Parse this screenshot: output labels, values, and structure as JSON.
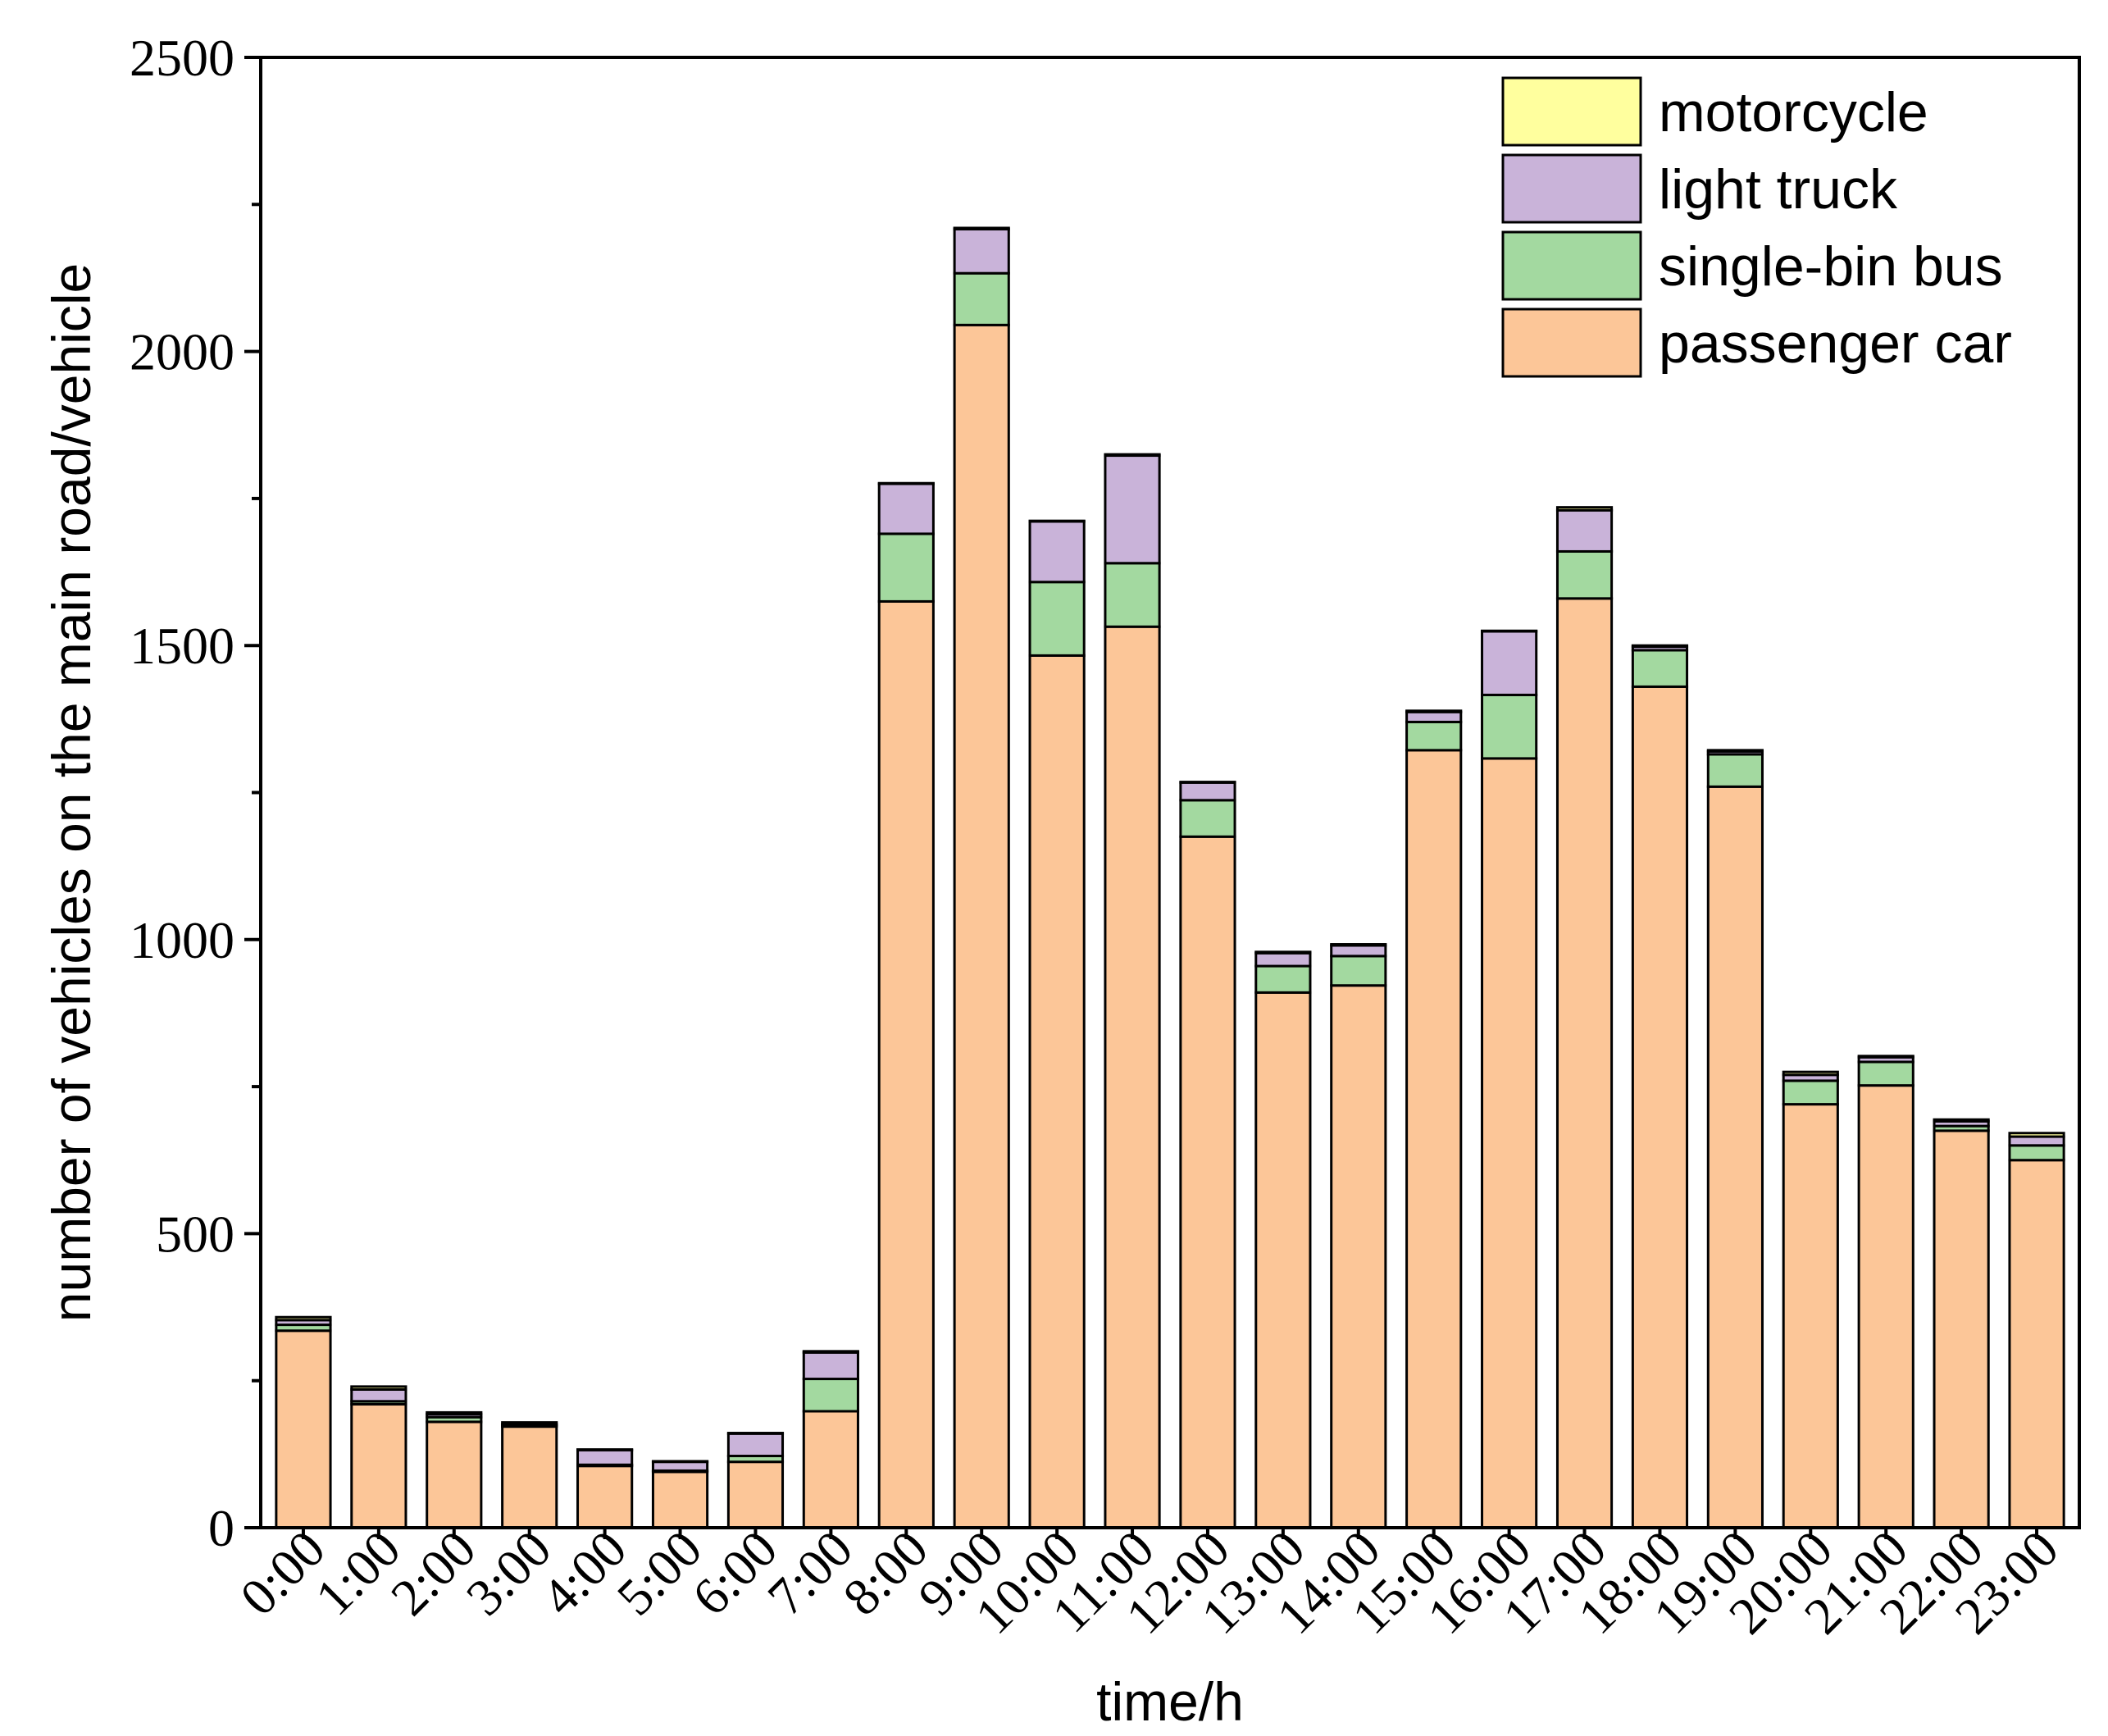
{
  "chart_data": {
    "type": "bar",
    "stacked": true,
    "title": "",
    "xlabel": "time/h",
    "ylabel": "number of vehicles on the main road/vehicle",
    "ylim": [
      0,
      2500
    ],
    "yticks": [
      0,
      500,
      1000,
      1500,
      2000,
      2500
    ],
    "categories": [
      "0:00",
      "1:00",
      "2:00",
      "3:00",
      "4:00",
      "5:00",
      "6:00",
      "7:00",
      "8:00",
      "9:00",
      "10:00",
      "11:00",
      "12:00",
      "13:00",
      "14:00",
      "15:00",
      "16:00",
      "17:00",
      "18:00",
      "19:00",
      "20:00",
      "21:00",
      "22:00",
      "23:00"
    ],
    "legend_position": "top-right",
    "series": [
      {
        "name": "passenger car",
        "color": "#FCC698",
        "values": [
          335,
          210,
          180,
          172,
          105,
          95,
          112,
          198,
          1575,
          2045,
          1483,
          1532,
          1175,
          910,
          922,
          1322,
          1308,
          1580,
          1430,
          1260,
          720,
          752,
          675,
          625
        ]
      },
      {
        "name": "single-bin bus",
        "color": "#A3D9A0",
        "values": [
          10,
          5,
          8,
          2,
          2,
          2,
          10,
          55,
          115,
          88,
          125,
          108,
          62,
          45,
          50,
          48,
          108,
          80,
          62,
          55,
          40,
          40,
          8,
          25
        ]
      },
      {
        "name": "light truck",
        "color": "#C9B3D9",
        "values": [
          8,
          20,
          5,
          2,
          25,
          15,
          38,
          45,
          85,
          75,
          103,
          183,
          30,
          22,
          18,
          17,
          108,
          70,
          6,
          5,
          10,
          8,
          8,
          15
        ]
      },
      {
        "name": "motorcycle",
        "color": "#FFFF9E",
        "values": [
          5,
          5,
          3,
          3,
          1,
          1,
          1,
          2,
          1,
          2,
          1,
          2,
          1,
          2,
          2,
          2,
          1,
          5,
          2,
          2,
          5,
          2,
          3,
          6
        ]
      }
    ]
  }
}
